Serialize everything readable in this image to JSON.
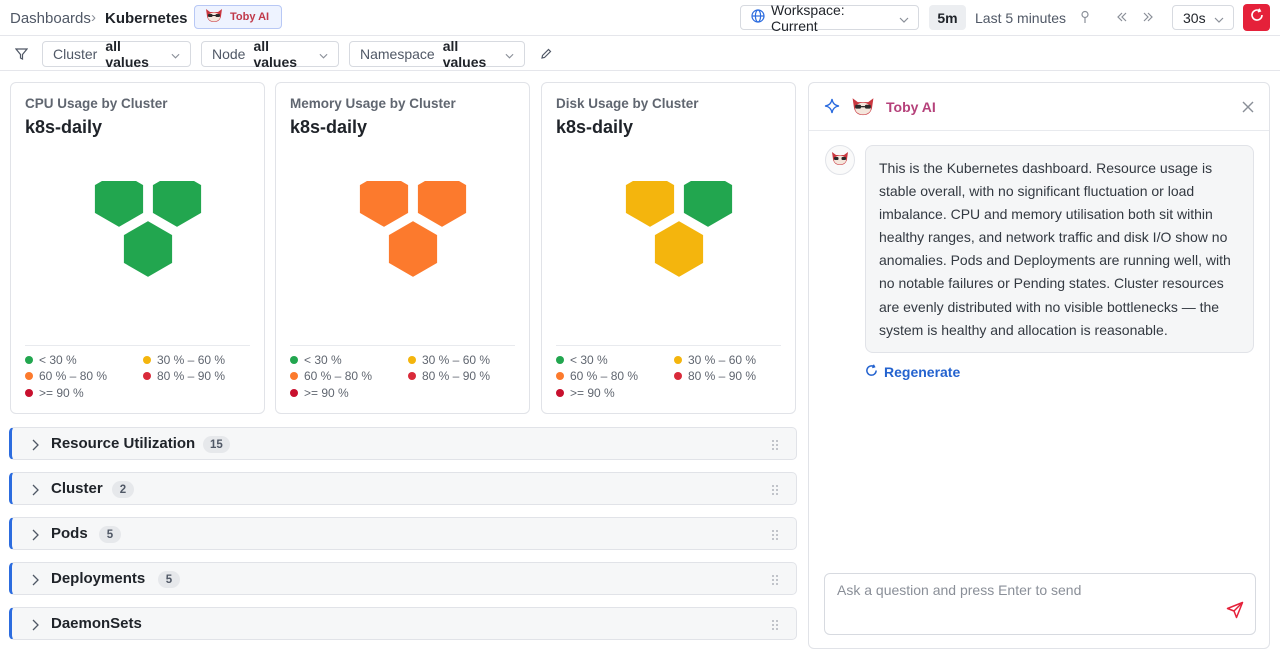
{
  "breadcrumb": {
    "root": "Dashboards",
    "separator": "›",
    "current": "Kubernetes"
  },
  "toby_button": {
    "label": "Toby AI"
  },
  "workspace": {
    "label": "Workspace: Current"
  },
  "time_range": {
    "chip": "5m",
    "text": "Last 5 minutes"
  },
  "refresh": {
    "interval": "30s"
  },
  "filters": [
    {
      "key": "Cluster",
      "value": "all values"
    },
    {
      "key": "Node",
      "value": "all values"
    },
    {
      "key": "Namespace",
      "value": "all values"
    }
  ],
  "panels": [
    {
      "title": "CPU Usage by Cluster",
      "value": "k8s-daily",
      "hex_colors": [
        "#22a64f",
        "#22a64f",
        "#22a64f"
      ]
    },
    {
      "title": "Memory Usage by Cluster",
      "value": "k8s-daily",
      "hex_colors": [
        "#fc7a2d",
        "#fc7a2d",
        "#fc7a2d"
      ]
    },
    {
      "title": "Disk Usage by Cluster",
      "value": "k8s-daily",
      "hex_colors": [
        "#f4b50d",
        "#22a64f",
        "#f4b50d"
      ]
    }
  ],
  "legend": [
    {
      "label": "< 30 %",
      "color": "#22a64f"
    },
    {
      "label": "30 % – 60 %",
      "color": "#f4b50d"
    },
    {
      "label": "60 % – 80 %",
      "color": "#fc7a2d"
    },
    {
      "label": "80 % – 90 %",
      "color": "#d92a3a"
    },
    {
      "label": ">= 90 %",
      "color": "#c8102e"
    }
  ],
  "sections": [
    {
      "label": "Resource Utilization",
      "count": "15"
    },
    {
      "label": "Cluster",
      "count": "2"
    },
    {
      "label": "Pods",
      "count": "5"
    },
    {
      "label": "Deployments",
      "count": "5"
    },
    {
      "label": "DaemonSets",
      "count": ""
    }
  ],
  "ai_panel": {
    "title": "Toby AI",
    "message": "This is the Kubernetes dashboard. Resource usage is stable overall, with no significant fluctuation or load imbalance. CPU and memory utilisation both sit within healthy ranges, and network traffic and disk I/O show no anomalies. Pods and Deployments are running well, with no notable failures or Pending states. Cluster resources are evenly distributed with no visible bottlenecks — the system is healthy and allocation is reasonable.",
    "regenerate": "Regenerate",
    "input_placeholder": "Ask a question and press Enter to send"
  },
  "icons": {
    "globe": "globe-icon",
    "pin": "pin-icon",
    "prev": "double-chevron-left-icon",
    "next": "double-chevron-right-icon",
    "refresh": "refresh-icon",
    "filter": "filter-icon",
    "edit": "pencil-icon",
    "spark": "sparkle-icon",
    "close": "close-icon",
    "send": "send-icon",
    "drag": "drag-handle-icon",
    "expand": "chevron-right-icon"
  },
  "colors": {
    "accent": "#2c6cdf",
    "refresh_button": "#e5213a",
    "ai_title": "#b5417a"
  }
}
